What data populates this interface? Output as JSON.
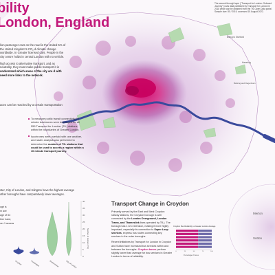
{
  "title": {
    "line1": "bility",
    "line2": "London, England"
  },
  "top_note": "The second through layer (\"Transport for London: Onboard Journey\") uses data published by Transport for London in 2018 which can be obtained from the TfL Open Data portal. Sample size: 80 / 2019, accessed 15 August 2022.",
  "intro": {
    "p1": "lion passenger cars on the road in the United 5% of the United Kingdom's CO₂ d climate change worldwide. In Greater licensed cars. People in the city centre holds in central London with no vehicle.",
    "p2": "high access to alternative transport, and as neutrality, they must make public transport it is",
    "p2_bold": "understand which areas of the city are",
    "p2_bold2": "d with need more links to the network."
  },
  "map_caption": "aces can be reached by a certain transportation",
  "method": {
    "p1": "To measure public transit connectivity 10 minute isochrones were developed for all 555 Transport for London (TfL) stations within the boundaries of Greater London.",
    "p2_a": "Isochrones were overlaid with one another, and raster analysis was performed to determine the",
    "p2_b": "number of TfL stations that could be used to access a region within a 10 minute transport journey."
  },
  "violin_intro": "ster, City of London, and Islington have the highest average other boroughs have comparatively lower averages.",
  "violin_chart": {
    "y_ticks": [
      "40",
      "35",
      "30",
      "25",
      "20",
      "15",
      "10",
      "5",
      "0"
    ],
    "y_axis_label": "Number of stations (TfL)",
    "x_labels": [
      "Croydon",
      "Kensington",
      "Westminster",
      "City of London"
    ],
    "fragment_text": [
      "ugh is",
      "m ave",
      "age of 54",
      "ther hand,",
      "ver 1 access"
    ]
  },
  "croydon": {
    "title": "Transport Change in Croydon",
    "p1_a": "Primarily served by the East and West Croydon railway stations, the Croydon borough is well connected by the",
    "p1_hl": "London Overground, London Trams, and Thameslink",
    "p1_b": "lines operated by TfL). The borough has 1 km extension, making it more highly important, especially its connection to",
    "p1_hl2": "Super Loop services",
    "p1_c": ", express bus routes connecting key services in the outer boroughs.",
    "p2_a": "Recent initiatives by Transport for London in Croydon and Sutton have increased bus services within and between the boroughs.",
    "p2_hl": "Croydon buses",
    "p2_b": "perform slightly lower than average for bus services in Greater London in terms of reliability."
  },
  "bar_chart_title": "Croydon Bus Reliability vs Greater London Average",
  "chart_data": {
    "type": "bar",
    "title": "Croydon Bus Reliability vs Greater London Average",
    "xlabel": "Percentage of buses",
    "ylabel": "",
    "categories": [
      "",
      "",
      "",
      "",
      "",
      ""
    ],
    "series": [
      {
        "values": [
          62,
          62,
          62,
          62,
          62,
          62
        ]
      },
      {
        "values": [
          38,
          38,
          38,
          38,
          38,
          38
        ]
      }
    ],
    "xlim": [
      0,
      100
    ],
    "x_ticks": [
      "0",
      "25",
      "50",
      "75",
      "100"
    ],
    "colors": [
      "#c2187a",
      "#6d6aa8"
    ]
  },
  "places": {
    "bishops_stortford": "Bishop's Stortford",
    "barking": "Barking and Dagenham",
    "havering": "Havering",
    "merton": "Merton",
    "sutton": "Sutton"
  },
  "colors": {
    "accent": "#c2187a",
    "river": "#3a4a9c",
    "green": "#b6dab0",
    "purple": "#8b3a9c"
  }
}
